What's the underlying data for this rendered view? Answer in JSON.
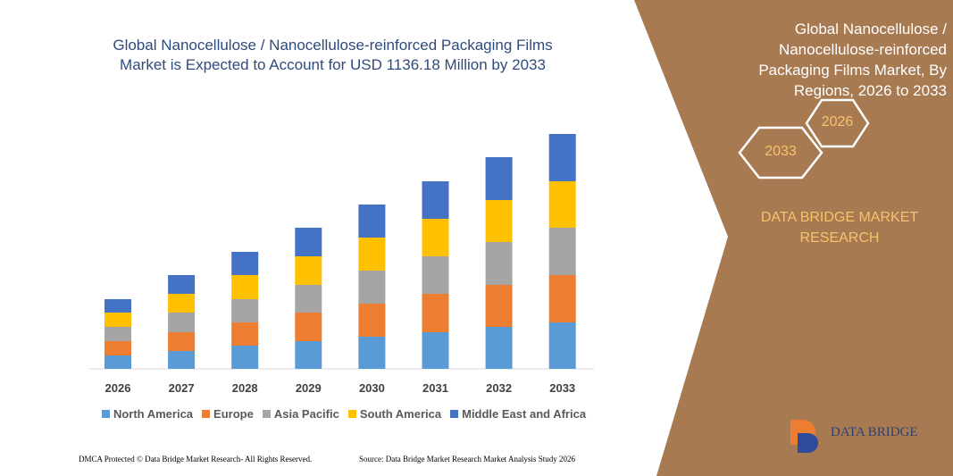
{
  "chart_data": {
    "type": "stacked_bar",
    "title": "Global Nanocellulose / Nanocellulose-reinforced Packaging Films Market is Expected to Account for USD 1136.18 Million by 2033",
    "categories": [
      "2026",
      "2027",
      "2028",
      "2029",
      "2030",
      "2031",
      "2032",
      "2033"
    ],
    "series": [
      {
        "name": "North America",
        "color": "#5b9bd5",
        "values": [
          15,
          20,
          26,
          31,
          36,
          41,
          47,
          52
        ]
      },
      {
        "name": "Europe",
        "color": "#ed7d31",
        "values": [
          16,
          21,
          26,
          32,
          37,
          43,
          47,
          53
        ]
      },
      {
        "name": "Asia Pacific",
        "color": "#a5a5a5",
        "values": [
          16,
          22,
          26,
          31,
          37,
          42,
          48,
          53
        ]
      },
      {
        "name": "South America",
        "color": "#ffc000",
        "values": [
          16,
          21,
          27,
          32,
          37,
          42,
          47,
          52
        ]
      },
      {
        "name": "Middle East and Africa",
        "color": "#4472c4",
        "values": [
          15,
          21,
          26,
          32,
          37,
          42,
          48,
          53
        ]
      }
    ]
  },
  "side_panel": {
    "title": "Global Nanocellulose / Nanocellulose-reinforced Packaging Films Market, By Regions, 2026 to 2033",
    "hex_1": "2026",
    "hex_2": "2033",
    "brand": "DATA BRIDGE MARKET RESEARCH",
    "logo": "DATA BRIDGE"
  },
  "footer": {
    "left": "DMCA Protected © Data Bridge Market Research- All Rights Reserved.",
    "right": "Source: Data Bridge Market Research Market Analysis Study 2026"
  }
}
